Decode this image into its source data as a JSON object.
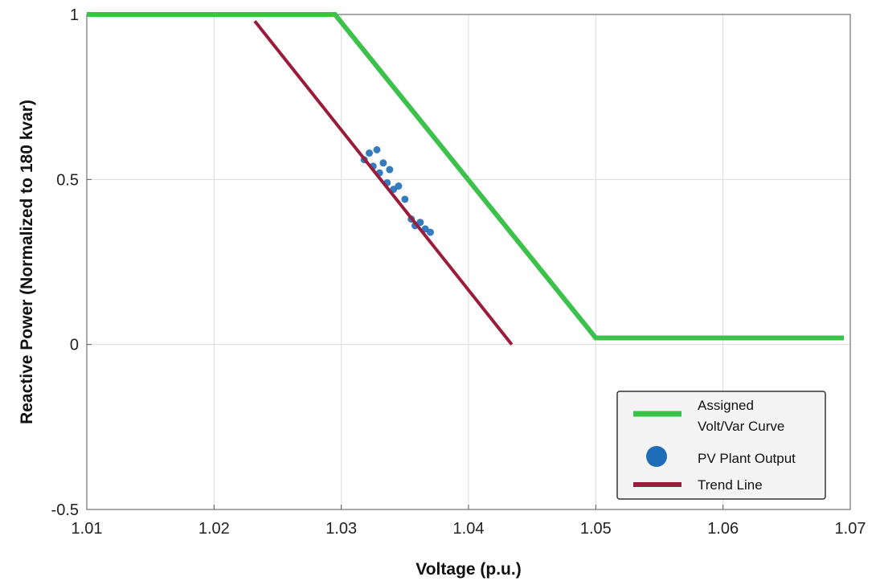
{
  "chart_data": {
    "type": "scatter",
    "title": "",
    "xlabel": "Voltage (p.u.)",
    "ylabel": "Reactive Power (Normalized to 180 kvar)",
    "xlim": [
      1.01,
      1.07
    ],
    "ylim": [
      -0.5,
      1
    ],
    "xticks": [
      "1.01",
      "1.02",
      "1.03",
      "1.04",
      "1.05",
      "1.06",
      "1.07"
    ],
    "yticks": [
      "-0.5",
      "0",
      "0.5",
      "1"
    ],
    "grid": true,
    "legend_position": "bottom-right",
    "series": [
      {
        "name": "Assigned Volt/Var Curve",
        "kind": "line",
        "color": "#3cc24a",
        "x": [
          1.01,
          1.0295,
          1.05,
          1.0695
        ],
        "y": [
          1.0,
          1.0,
          0.02,
          0.02
        ]
      },
      {
        "name": "PV Plant Output",
        "kind": "scatter",
        "color": "#1f6db8",
        "x": [
          1.0318,
          1.0322,
          1.0325,
          1.0328,
          1.033,
          1.0333,
          1.0336,
          1.0338,
          1.0341,
          1.0345,
          1.035,
          1.0355,
          1.0358,
          1.0362,
          1.0366,
          1.037
        ],
        "y": [
          0.56,
          0.58,
          0.54,
          0.59,
          0.52,
          0.55,
          0.49,
          0.53,
          0.47,
          0.48,
          0.44,
          0.38,
          0.36,
          0.37,
          0.35,
          0.34
        ]
      },
      {
        "name": "Trend Line",
        "kind": "line",
        "color": "#9b1b3a",
        "x": [
          1.0232,
          1.0434
        ],
        "y": [
          0.98,
          0.0
        ]
      }
    ]
  }
}
